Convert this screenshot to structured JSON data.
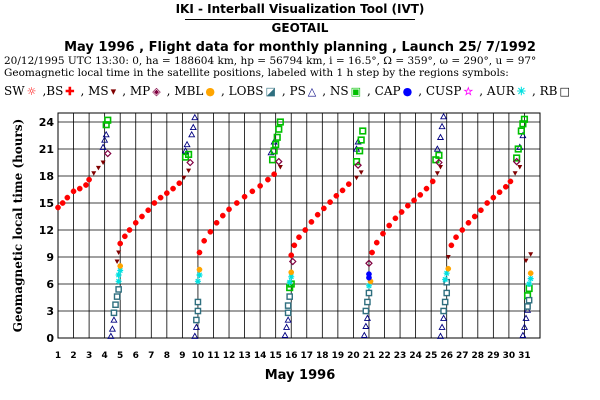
{
  "header": {
    "app_title": "IKI - Interball Visualization Tool (IVT)",
    "satellite": "GEOTAIL",
    "subtitle": "May      1996 ,  Flight data for monthly planning ,   Launch 25/ 7/1992",
    "orbit_info": "20/12/1995 UTC 13:30: 0, ha = 188604 km, hp =  56794 km, i = 16.5°, Ω = 359°, ω = 290°, u =  97°",
    "description": "Geomagnetic local time in the satellite positions, labeled with 1 h step by the regions symbols:"
  },
  "legend": [
    {
      "label": "SW",
      "symbol": "☼",
      "color": "#ff0000"
    },
    {
      "label": ",BS",
      "symbol": "✚",
      "color": "#ff0000"
    },
    {
      "label": ", MS",
      "symbol": "▾",
      "color": "#800000"
    },
    {
      "label": ", MP",
      "symbol": "◈",
      "color": "#800040"
    },
    {
      "label": ", MBL",
      "symbol": "●",
      "color": "#ffa500"
    },
    {
      "label": ", LOBS",
      "symbol": "◪",
      "color": "#2f6f7f"
    },
    {
      "label": ", PS",
      "symbol": "△",
      "color": "#000080"
    },
    {
      "label": ", NS",
      "symbol": "▣",
      "color": "#00c000"
    },
    {
      "label": ", CAP",
      "symbol": "●",
      "color": "#0000ff"
    },
    {
      "label": ", CUSP",
      "symbol": "☆",
      "color": "#ff00ff"
    },
    {
      "label": ", AUR",
      "symbol": "✳",
      "color": "#00e0e0"
    },
    {
      "label": ", RB",
      "symbol": "□",
      "color": "#000000"
    }
  ],
  "chart_data": {
    "type": "scatter",
    "xlabel": "May     1996",
    "ylabel": "Geomagnetic local time (hours)",
    "x_ticks": [
      "1",
      "2",
      "3",
      "4",
      "5",
      "6",
      "7",
      "8",
      "9",
      "10",
      "11",
      "12",
      "13",
      "14",
      "15",
      "16",
      "17",
      "18",
      "19",
      "20",
      "21",
      "22",
      "23",
      "24",
      "25",
      "26",
      "27",
      "28",
      "29",
      "30",
      "31"
    ],
    "y_ticks": [
      "0",
      "3",
      "6",
      "9",
      "12",
      "15",
      "18",
      "21",
      "24"
    ],
    "xlim": [
      1,
      32
    ],
    "ylim": [
      0,
      25
    ],
    "grid": true,
    "orbit_starts_day": [
      1,
      4.8,
      10,
      15.8,
      21,
      26
    ],
    "series": [
      {
        "region": "SW",
        "points": [
          [
            1.0,
            14.5
          ],
          [
            1.3,
            15.0
          ],
          [
            1.6,
            15.6
          ],
          [
            2.0,
            16.3
          ],
          [
            2.4,
            16.6
          ],
          [
            2.8,
            17.0
          ],
          [
            3.0,
            17.6
          ]
        ]
      },
      {
        "region": "MS",
        "points": [
          [
            3.3,
            18.3
          ],
          [
            3.6,
            18.9
          ],
          [
            3.9,
            19.5
          ],
          [
            4.8,
            8.5
          ],
          [
            4.9,
            9.5
          ],
          [
            9.1,
            17.8
          ],
          [
            9.4,
            18.6
          ],
          [
            15.3,
            19.0
          ],
          [
            20.2,
            17.8
          ],
          [
            20.5,
            18.4
          ],
          [
            25.4,
            18.3
          ],
          [
            25.6,
            19.0
          ],
          [
            26.1,
            9.0
          ],
          [
            30.4,
            18.3
          ],
          [
            30.7,
            19.0
          ],
          [
            31.1,
            8.6
          ],
          [
            31.4,
            9.3
          ]
        ]
      },
      {
        "region": "BS",
        "points": [
          [
            5.0,
            10.5
          ],
          [
            5.3,
            11.3
          ],
          [
            5.6,
            12.0
          ],
          [
            6.0,
            12.8
          ],
          [
            6.4,
            13.5
          ],
          [
            6.8,
            14.2
          ],
          [
            7.2,
            15.0
          ],
          [
            7.6,
            15.6
          ],
          [
            8.0,
            16.1
          ],
          [
            8.4,
            16.6
          ],
          [
            8.8,
            17.2
          ],
          [
            10.1,
            9.5
          ],
          [
            10.4,
            10.8
          ],
          [
            10.8,
            11.8
          ],
          [
            11.2,
            12.8
          ],
          [
            11.6,
            13.6
          ],
          [
            12.0,
            14.3
          ],
          [
            12.5,
            15.0
          ],
          [
            13.0,
            15.7
          ],
          [
            13.5,
            16.3
          ],
          [
            14.0,
            16.9
          ],
          [
            14.5,
            17.6
          ],
          [
            14.9,
            18.2
          ],
          [
            16.0,
            9.2
          ],
          [
            16.2,
            10.3
          ],
          [
            16.5,
            11.2
          ],
          [
            16.9,
            12.0
          ],
          [
            17.3,
            12.9
          ],
          [
            17.7,
            13.7
          ],
          [
            18.1,
            14.4
          ],
          [
            18.5,
            15.1
          ],
          [
            18.9,
            15.8
          ],
          [
            19.3,
            16.4
          ],
          [
            19.7,
            17.1
          ],
          [
            21.2,
            9.5
          ],
          [
            21.5,
            10.6
          ],
          [
            21.9,
            11.6
          ],
          [
            22.3,
            12.5
          ],
          [
            22.7,
            13.3
          ],
          [
            23.1,
            14.0
          ],
          [
            23.5,
            14.7
          ],
          [
            23.9,
            15.3
          ],
          [
            24.3,
            15.9
          ],
          [
            24.7,
            16.6
          ],
          [
            25.1,
            17.4
          ],
          [
            26.3,
            10.3
          ],
          [
            26.6,
            11.2
          ],
          [
            27.0,
            12.0
          ],
          [
            27.4,
            12.8
          ],
          [
            27.8,
            13.5
          ],
          [
            28.2,
            14.2
          ],
          [
            28.6,
            15.0
          ],
          [
            29.0,
            15.6
          ],
          [
            29.4,
            16.2
          ],
          [
            29.8,
            16.8
          ],
          [
            30.1,
            17.4
          ]
        ]
      },
      {
        "region": "PS",
        "points": [
          [
            3.9,
            21.2
          ],
          [
            4.0,
            22.0
          ],
          [
            4.1,
            22.6
          ],
          [
            9.2,
            20.8
          ],
          [
            9.3,
            21.5
          ],
          [
            9.6,
            22.6
          ],
          [
            9.7,
            23.4
          ],
          [
            9.8,
            24.5
          ],
          [
            14.7,
            20.6
          ],
          [
            14.9,
            21.8
          ],
          [
            20.2,
            21.0
          ],
          [
            20.3,
            21.8
          ],
          [
            25.4,
            21.0
          ],
          [
            25.6,
            22.3
          ],
          [
            25.7,
            23.5
          ],
          [
            25.8,
            24.6
          ],
          [
            30.7,
            21.2
          ],
          [
            30.9,
            22.5
          ],
          [
            4.4,
            0.2
          ],
          [
            4.5,
            1.0
          ],
          [
            4.6,
            2.0
          ],
          [
            9.8,
            0.2
          ],
          [
            9.9,
            1.2
          ],
          [
            15.6,
            0.3
          ],
          [
            15.7,
            1.2
          ],
          [
            15.8,
            2.0
          ],
          [
            20.7,
            0.3
          ],
          [
            20.8,
            1.3
          ],
          [
            20.9,
            2.2
          ],
          [
            25.6,
            0.2
          ],
          [
            25.7,
            1.2
          ],
          [
            25.8,
            2.2
          ],
          [
            30.9,
            0.3
          ],
          [
            31.0,
            1.2
          ],
          [
            31.1,
            2.2
          ],
          [
            31.2,
            3.1
          ]
        ]
      },
      {
        "region": "NS",
        "points": [
          [
            4.1,
            23.7
          ],
          [
            4.2,
            24.2
          ],
          [
            9.2,
            20.1
          ],
          [
            9.4,
            20.4
          ],
          [
            14.8,
            19.8
          ],
          [
            14.9,
            20.8
          ],
          [
            15.0,
            21.5
          ],
          [
            15.1,
            22.3
          ],
          [
            15.2,
            23.2
          ],
          [
            15.3,
            24.0
          ],
          [
            20.2,
            19.6
          ],
          [
            20.4,
            20.8
          ],
          [
            20.5,
            22.0
          ],
          [
            20.6,
            23.0
          ],
          [
            25.3,
            19.8
          ],
          [
            25.5,
            20.3
          ],
          [
            30.5,
            20.0
          ],
          [
            30.6,
            21.0
          ],
          [
            30.8,
            23.0
          ],
          [
            30.9,
            23.8
          ],
          [
            31.0,
            24.3
          ],
          [
            15.9,
            5.6
          ],
          [
            16.0,
            6.0
          ],
          [
            31.2,
            4.7
          ],
          [
            31.3,
            5.5
          ]
        ]
      },
      {
        "region": "LOBS",
        "points": [
          [
            4.6,
            2.8
          ],
          [
            4.7,
            3.7
          ],
          [
            4.8,
            4.6
          ],
          [
            4.9,
            5.4
          ],
          [
            9.9,
            2.0
          ],
          [
            10.0,
            3.0
          ],
          [
            10.0,
            4.0
          ],
          [
            15.8,
            2.8
          ],
          [
            15.8,
            3.6
          ],
          [
            15.9,
            4.6
          ],
          [
            20.8,
            3.0
          ],
          [
            20.9,
            4.0
          ],
          [
            21.0,
            5.0
          ],
          [
            25.8,
            3.0
          ],
          [
            25.9,
            4.0
          ],
          [
            26.0,
            5.0
          ],
          [
            26.0,
            6.2
          ],
          [
            31.2,
            3.5
          ],
          [
            31.3,
            4.2
          ]
        ]
      },
      {
        "region": "AUR",
        "points": [
          [
            4.9,
            6.3
          ],
          [
            4.9,
            7.0
          ],
          [
            5.0,
            7.5
          ],
          [
            10.0,
            6.3
          ],
          [
            10.1,
            7.0
          ],
          [
            15.9,
            6.2
          ],
          [
            16.0,
            6.8
          ],
          [
            21.0,
            5.8
          ],
          [
            25.9,
            6.5
          ],
          [
            26.0,
            7.2
          ],
          [
            31.3,
            6.0
          ],
          [
            31.4,
            6.6
          ]
        ]
      },
      {
        "region": "MBL",
        "points": [
          [
            5.0,
            8.0
          ],
          [
            10.1,
            7.6
          ],
          [
            16.0,
            7.3
          ],
          [
            21.1,
            6.3
          ],
          [
            26.1,
            7.7
          ],
          [
            31.4,
            7.2
          ]
        ]
      },
      {
        "region": "CAP",
        "points": [
          [
            21.0,
            6.7
          ],
          [
            21.0,
            7.1
          ]
        ]
      },
      {
        "region": "MP",
        "points": [
          [
            4.2,
            20.5
          ],
          [
            9.5,
            19.5
          ],
          [
            15.2,
            19.6
          ],
          [
            20.3,
            19.2
          ],
          [
            25.5,
            19.5
          ],
          [
            30.5,
            19.6
          ],
          [
            21.0,
            8.3
          ],
          [
            16.1,
            8.5
          ]
        ]
      }
    ]
  }
}
